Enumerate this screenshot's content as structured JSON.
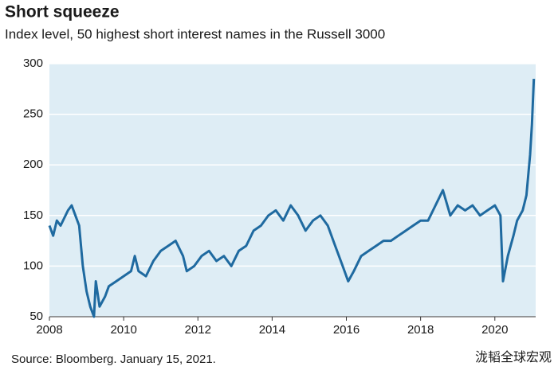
{
  "chart_data": {
    "type": "line",
    "title": "Short squeeze",
    "subtitle": "Index level, 50 highest short interest names in the Russell 3000",
    "source": "Source: Bloomberg. January 15, 2021.",
    "watermark": "泷韬全球宏观",
    "xlim": [
      2008,
      2021.1
    ],
    "xticks": [
      2008,
      2010,
      2012,
      2014,
      2016,
      2018,
      2020
    ],
    "ylim": [
      50,
      300
    ],
    "yticks": [
      50,
      100,
      150,
      200,
      250,
      300
    ],
    "grid": true,
    "series": [
      {
        "color": "#1f6aa0",
        "x": [
          2008.0,
          2008.1,
          2008.2,
          2008.3,
          2008.5,
          2008.6,
          2008.7,
          2008.8,
          2008.9,
          2009.0,
          2009.1,
          2009.2,
          2009.25,
          2009.35,
          2009.5,
          2009.6,
          2009.8,
          2010.0,
          2010.2,
          2010.3,
          2010.4,
          2010.6,
          2010.8,
          2011.0,
          2011.2,
          2011.4,
          2011.6,
          2011.7,
          2011.9,
          2012.1,
          2012.3,
          2012.5,
          2012.7,
          2012.9,
          2013.1,
          2013.3,
          2013.5,
          2013.7,
          2013.9,
          2014.1,
          2014.3,
          2014.5,
          2014.7,
          2014.9,
          2015.1,
          2015.3,
          2015.5,
          2015.7,
          2015.9,
          2016.05,
          2016.2,
          2016.4,
          2016.6,
          2016.8,
          2017.0,
          2017.2,
          2017.4,
          2017.6,
          2017.8,
          2018.0,
          2018.2,
          2018.4,
          2018.6,
          2018.8,
          2019.0,
          2019.2,
          2019.4,
          2019.6,
          2019.8,
          2020.0,
          2020.15,
          2020.22,
          2020.35,
          2020.5,
          2020.6,
          2020.75,
          2020.85,
          2020.95,
          2021.0,
          2021.05
        ],
        "values": [
          140,
          130,
          145,
          140,
          155,
          160,
          150,
          140,
          100,
          75,
          60,
          50,
          85,
          60,
          70,
          80,
          85,
          90,
          95,
          110,
          95,
          90,
          105,
          115,
          120,
          125,
          110,
          95,
          100,
          110,
          115,
          105,
          110,
          100,
          115,
          120,
          135,
          140,
          150,
          155,
          145,
          160,
          150,
          135,
          145,
          150,
          140,
          120,
          100,
          85,
          95,
          110,
          115,
          120,
          125,
          125,
          130,
          135,
          140,
          145,
          145,
          160,
          175,
          150,
          160,
          155,
          160,
          150,
          155,
          160,
          150,
          85,
          110,
          130,
          145,
          155,
          170,
          210,
          240,
          285
        ]
      }
    ]
  }
}
